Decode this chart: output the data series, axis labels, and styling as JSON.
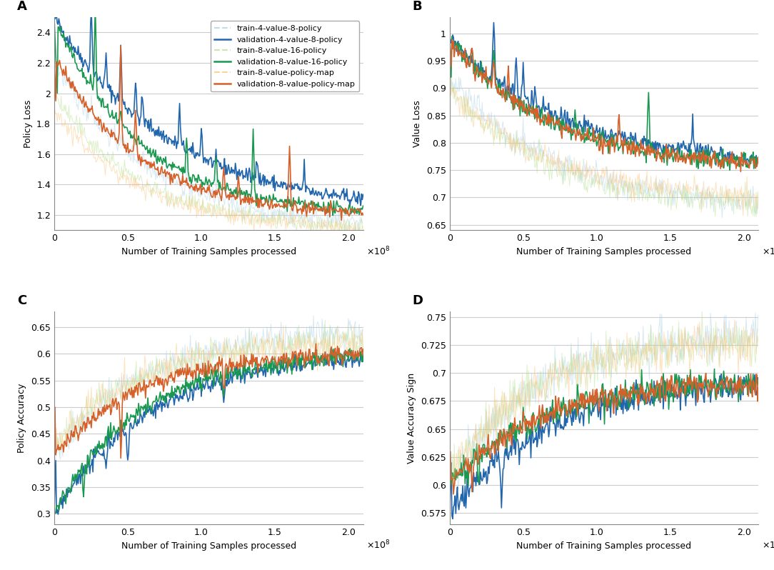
{
  "colors": {
    "blue": "#2166ac",
    "green": "#1a9850",
    "orange": "#d6602a",
    "light_blue": "#a6cee3",
    "light_green": "#b2df8a",
    "light_orange": "#fdbf6f"
  },
  "legend_labels": [
    "train-4-value-8-policy",
    "validation-4-value-8-policy",
    "train-8-value-16-policy",
    "validation-8-value-16-policy",
    "train-8-value-policy-map",
    "validation-8-value-policy-map"
  ],
  "xlabel": "Number of Training Samples processed",
  "panel_labels": [
    "A",
    "B",
    "C",
    "D"
  ],
  "ylabels": [
    "Policy Loss",
    "Value Loss",
    "Policy Accuracy",
    "Value Accuracy Sign"
  ],
  "A_ylim": [
    1.1,
    2.5
  ],
  "A_yticks": [
    1.2,
    1.4,
    1.6,
    1.8,
    2.0,
    2.2,
    2.4
  ],
  "B_ylim": [
    0.64,
    1.03
  ],
  "B_yticks": [
    0.65,
    0.7,
    0.75,
    0.8,
    0.85,
    0.9,
    0.95,
    1.0
  ],
  "C_ylim": [
    0.28,
    0.68
  ],
  "C_yticks": [
    0.3,
    0.35,
    0.4,
    0.45,
    0.5,
    0.55,
    0.6,
    0.65
  ],
  "D_ylim": [
    0.565,
    0.755
  ],
  "D_yticks": [
    0.575,
    0.6,
    0.625,
    0.65,
    0.675,
    0.7,
    0.725,
    0.75
  ],
  "xlim": [
    0,
    210000000.0
  ],
  "xticks": [
    0,
    50000000.0,
    100000000.0,
    150000000.0,
    200000000.0
  ],
  "xticklabels": [
    "0",
    "0.5",
    "1.0",
    "1.5",
    "2.0"
  ]
}
